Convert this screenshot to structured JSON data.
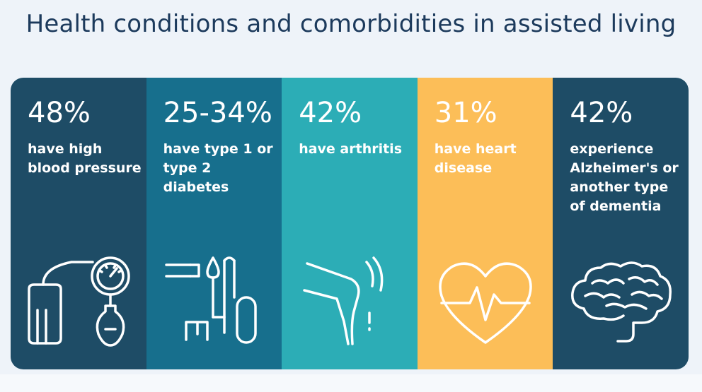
{
  "title": "Health conditions and comorbidities in assisted living",
  "colors": {
    "background": "#eef3f9",
    "title": "#1c3a5c",
    "text": "#ffffff"
  },
  "chart_data": {
    "type": "table",
    "title": "Health conditions and comorbidities in assisted living",
    "items": [
      {
        "value": "48%",
        "label": "have high blood pressure",
        "color": "#1e4c66",
        "icon": "blood-pressure-monitor-icon"
      },
      {
        "value": "25-34%",
        "label": "have type 1 or type 2 diabetes",
        "color": "#176f8d",
        "icon": "insulin-syringe-icon"
      },
      {
        "value": "42%",
        "label": "have arthritis",
        "color": "#2cadb6",
        "icon": "knee-joint-icon"
      },
      {
        "value": "31%",
        "label": "have heart disease",
        "color": "#fcbe58",
        "icon": "heart-pulse-icon"
      },
      {
        "value": "42%",
        "label": "experience Alzheimer's or another type of dementia",
        "color": "#1e4c66",
        "icon": "brain-icon"
      }
    ]
  }
}
